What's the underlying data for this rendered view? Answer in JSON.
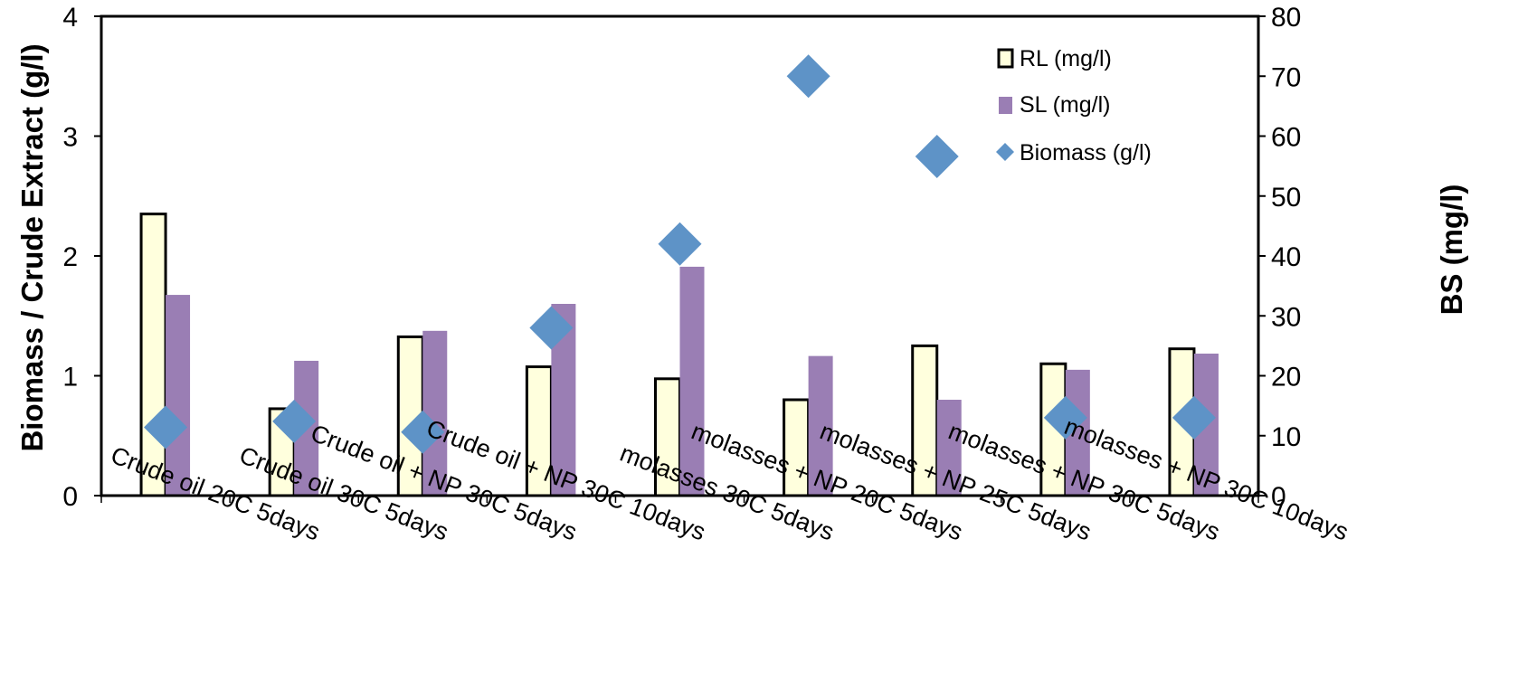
{
  "chart_data": {
    "type": "bar",
    "categories": [
      "Crude oil 20C 5days",
      "Crude oil 30C 5days",
      "Crude oil + NP 30C 5days",
      "Crude oil + NP 30C 10days",
      "molasses 30C 5days",
      "molasses + NP 20C 5days",
      "molasses + NP 25C 5days",
      "molasses + NP 30C 5days",
      "molasses + NP 30C 10days"
    ],
    "series": [
      {
        "name": "RL (mg/l)",
        "axis": "right",
        "kind": "bar",
        "color": "#FFFFDD",
        "stroke": "#000000",
        "values": [
          47,
          14.5,
          26.5,
          21.5,
          19.5,
          16,
          25,
          22,
          24.5
        ]
      },
      {
        "name": "SL (mg/l)",
        "axis": "right",
        "kind": "bar",
        "color": "#9A7EB4",
        "values": [
          33.5,
          22.5,
          27.5,
          32,
          38.2,
          23.3,
          16,
          21,
          23.7
        ]
      },
      {
        "name": "Biomass (g/l)",
        "axis": "left",
        "kind": "marker",
        "marker": "diamond",
        "color": "#5E93C7",
        "values": [
          0.57,
          0.62,
          0.53,
          1.4,
          2.1,
          3.5,
          2.83,
          0.65,
          0.65
        ]
      }
    ],
    "ylabel": "Biomass / Crude Extract (g/l)",
    "ylim": [
      0,
      4
    ],
    "yticks": [
      "0",
      "1",
      "2",
      "3",
      "4"
    ],
    "y2label": "BS (mg/l)",
    "y2lim": [
      0,
      80
    ],
    "y2ticks": [
      "0",
      "10",
      "20",
      "30",
      "40",
      "50",
      "60",
      "70",
      "80"
    ],
    "legend": [
      "RL (mg/l)",
      "SL (mg/l)",
      "Biomass (g/l)"
    ],
    "legend_position": "top-right",
    "grid": false
  }
}
